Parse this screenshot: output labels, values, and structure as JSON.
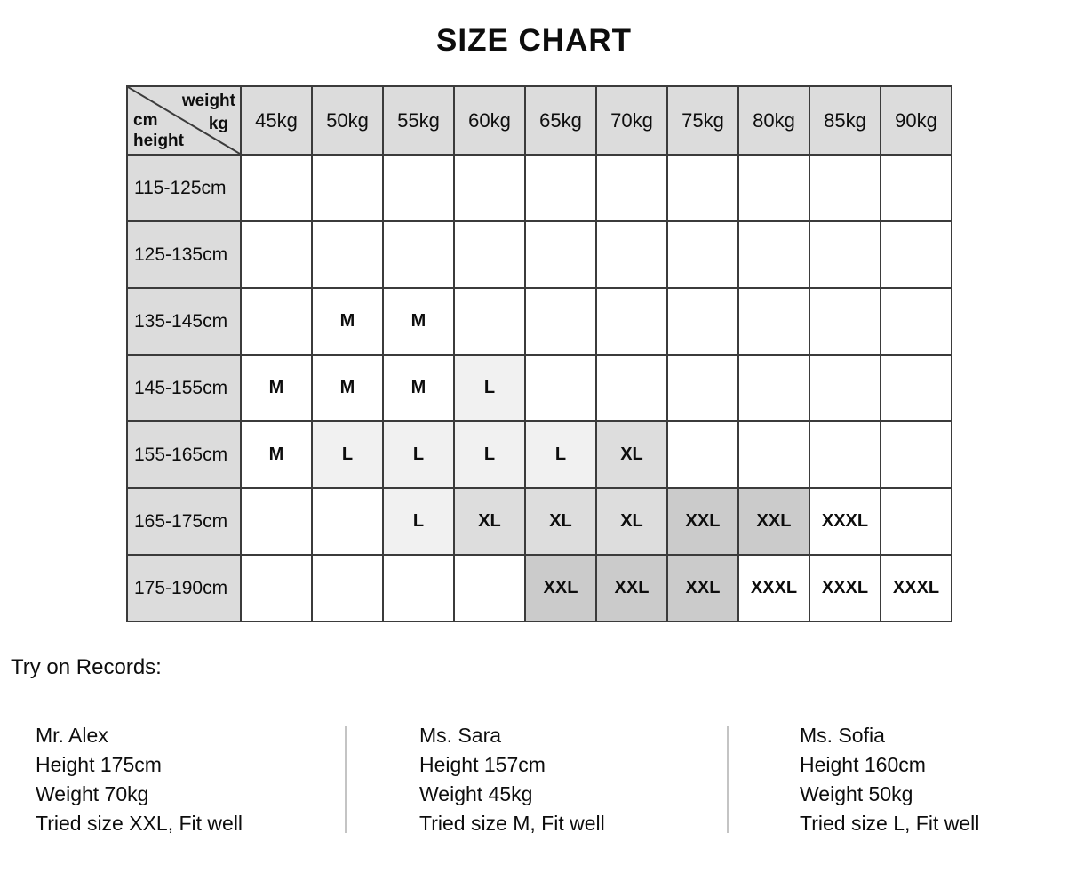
{
  "chart_data": {
    "type": "table",
    "title": "SIZE CHART",
    "corner": {
      "weight": "weight",
      "kg": "kg",
      "cm": "cm",
      "height": "height"
    },
    "weight_headers": [
      "45kg",
      "50kg",
      "55kg",
      "60kg",
      "65kg",
      "70kg",
      "75kg",
      "80kg",
      "85kg",
      "90kg"
    ],
    "rows": [
      {
        "height_range": "115-125cm",
        "cells": [
          "",
          "",
          "",
          "",
          "",
          "",
          "",
          "",
          "",
          ""
        ]
      },
      {
        "height_range": "125-135cm",
        "cells": [
          "",
          "",
          "",
          "",
          "",
          "",
          "",
          "",
          "",
          ""
        ]
      },
      {
        "height_range": "135-145cm",
        "cells": [
          "",
          "M",
          "M",
          "",
          "",
          "",
          "",
          "",
          "",
          ""
        ]
      },
      {
        "height_range": "145-155cm",
        "cells": [
          "M",
          "M",
          "M",
          "L",
          "",
          "",
          "",
          "",
          "",
          ""
        ]
      },
      {
        "height_range": "155-165cm",
        "cells": [
          "M",
          "L",
          "L",
          "L",
          "L",
          "XL",
          "",
          "",
          "",
          ""
        ]
      },
      {
        "height_range": "165-175cm",
        "cells": [
          "",
          "",
          "L",
          "XL",
          "XL",
          "XL",
          "XXL",
          "XXL",
          "XXXL",
          ""
        ]
      },
      {
        "height_range": "175-190cm",
        "cells": [
          "",
          "",
          "",
          "",
          "XXL",
          "XXL",
          "XXL",
          "XXXL",
          "XXXL",
          "XXXL"
        ]
      }
    ],
    "cell_shading_by_size": {
      "M": "#ffffff",
      "L": "#f1f1f1",
      "XL": "#dddddd",
      "XXL": "#cbcbcb",
      "XXXL": "#ffffff",
      "default": "#ffffff"
    },
    "colors": {
      "header_bg": "#dcdcdc",
      "table_border": "#3b3b3b",
      "divider": "#c4c4c4"
    }
  },
  "records": {
    "heading": "Try on Records:",
    "entries": [
      {
        "name": "Mr. Alex",
        "height": "Height 175cm",
        "weight": "Weight 70kg",
        "tried": "Tried size XXL, Fit well"
      },
      {
        "name": "Ms. Sara",
        "height": "Height 157cm",
        "weight": "Weight 45kg",
        "tried": "Tried size M, Fit well"
      },
      {
        "name": "Ms. Sofia",
        "height": "Height 160cm",
        "weight": "Weight 50kg",
        "tried": "Tried size L, Fit well"
      }
    ]
  }
}
